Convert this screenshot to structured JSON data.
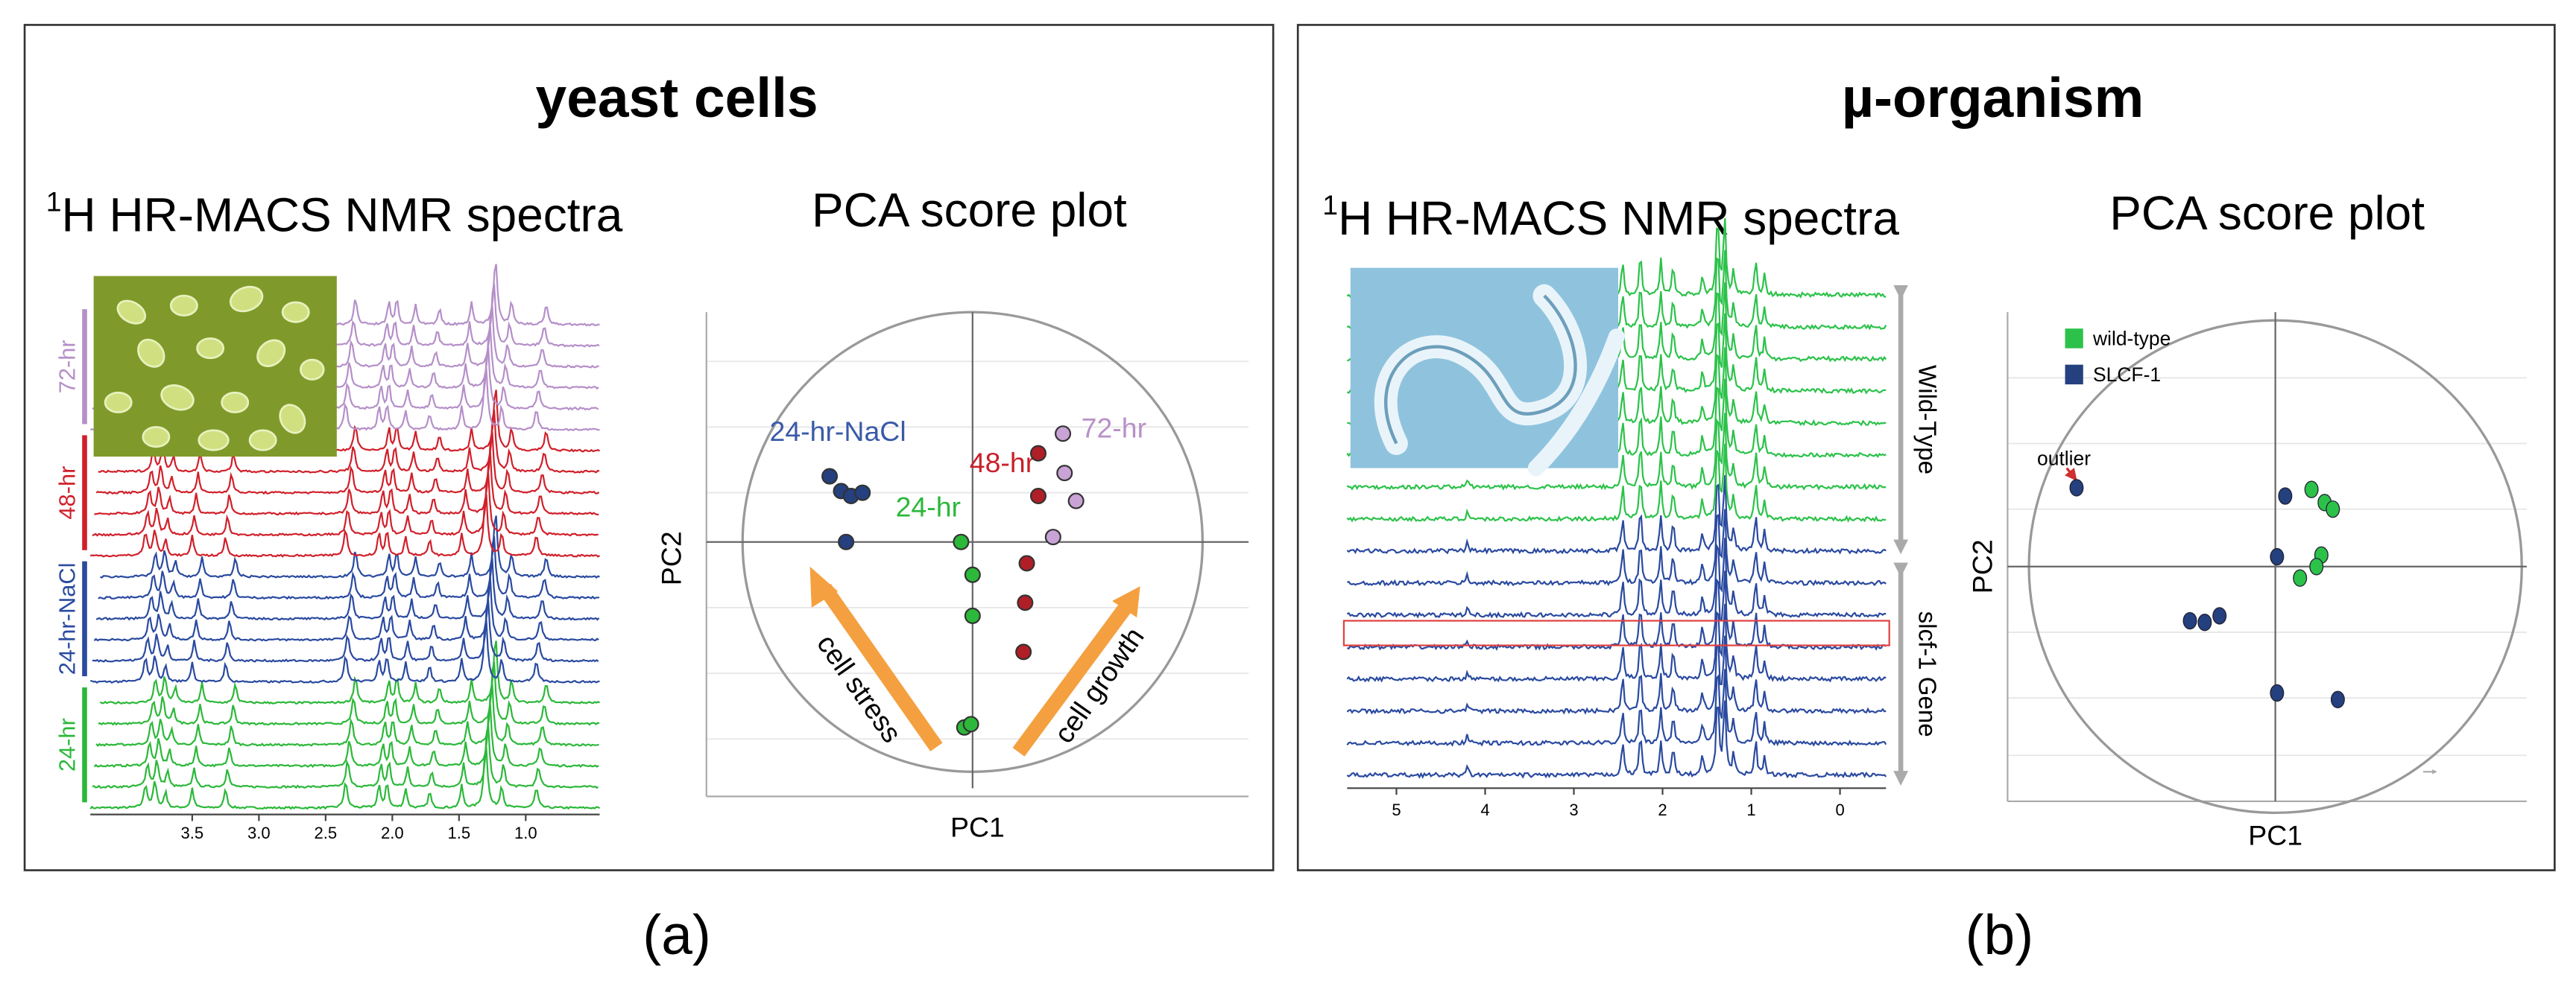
{
  "panels": [
    {
      "label": "(a)",
      "title": "yeast cells",
      "spectra": {
        "title_sup": "1",
        "title": "H HR-MACS NMR spectra",
        "groups": [
          "72-hr",
          "48-hr",
          "24-hr-NaCl",
          "24-hr"
        ],
        "ticks": [
          "3.5",
          "3.0",
          "2.5",
          "2.0",
          "1.5",
          "1.0"
        ]
      },
      "pca": {
        "title": "PCA score plot",
        "xlabel": "PC1",
        "ylabel": "PC2",
        "labels": [
          "24-hr-NaCl",
          "24-hr",
          "48-hr",
          "72-hr"
        ],
        "arrows": [
          "cell stress",
          "cell growth"
        ]
      }
    },
    {
      "label": "(b)",
      "title": "µ-organism",
      "spectra": {
        "title_sup": "1",
        "title": "H HR-MACS NMR spectra",
        "groups": [
          "Wild-Type",
          "slcf-1 Gene"
        ],
        "ticks": [
          "5",
          "4",
          "3",
          "2",
          "1",
          "0"
        ]
      },
      "pca": {
        "title": "PCA score plot",
        "xlabel": "PC1",
        "ylabel": "PC2",
        "legend": [
          "wild-type",
          "SLCF-1"
        ],
        "annotation": "outlier"
      }
    }
  ]
}
